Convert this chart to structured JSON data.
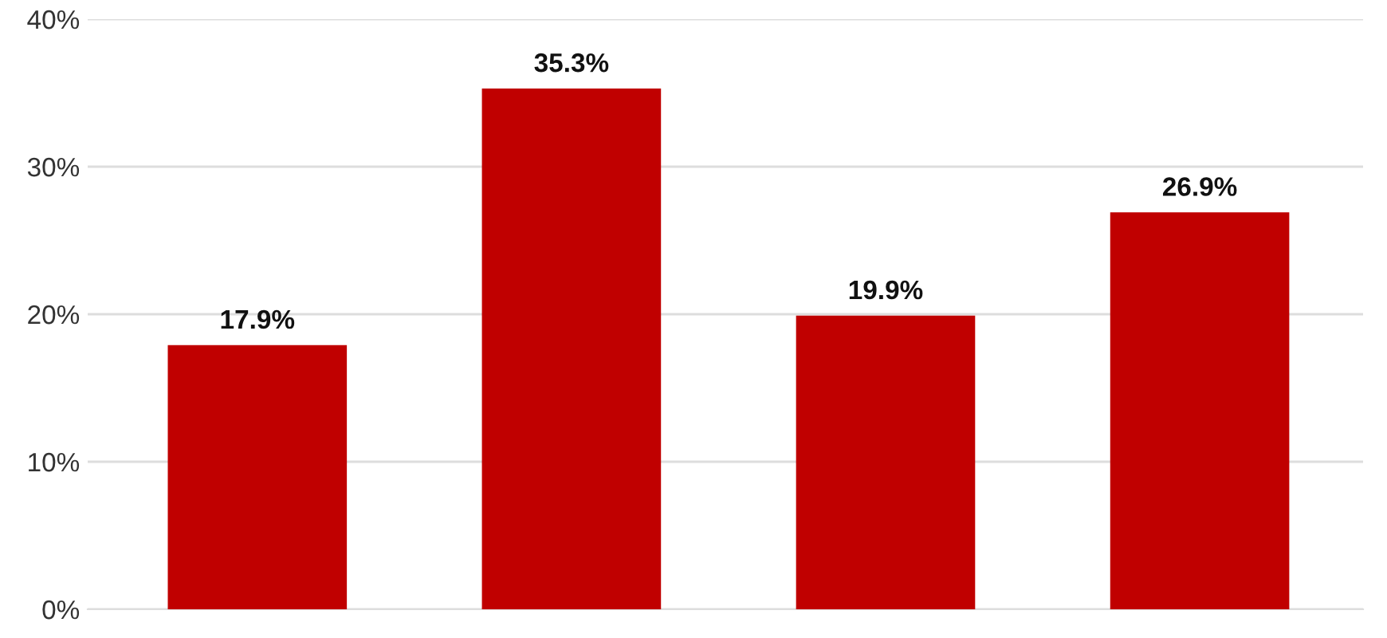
{
  "chart_data": {
    "type": "bar",
    "categories": [
      null,
      null,
      null,
      null
    ],
    "values": [
      17.9,
      35.3,
      19.9,
      26.9
    ],
    "value_labels": [
      "17.9%",
      "35.3%",
      "19.9%",
      "26.9%"
    ],
    "color": "#c00000",
    "ylim": [
      0,
      40
    ],
    "yticks": [
      {
        "value": 0,
        "label": "0%"
      },
      {
        "value": 10,
        "label": "10%"
      },
      {
        "value": 20,
        "label": "20%"
      },
      {
        "value": 30,
        "label": "30%"
      },
      {
        "value": 40,
        "label": "40%"
      }
    ],
    "grid": "y",
    "tick_labels": "y"
  }
}
